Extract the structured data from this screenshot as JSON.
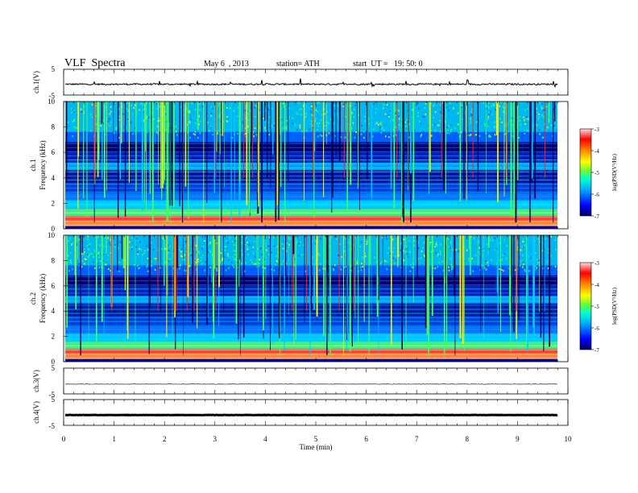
{
  "header": {
    "title": "VLF  Spectra",
    "date": "May 6  , 2013",
    "station": "station= ATH",
    "start": "start  UT =   19: 50: 0"
  },
  "chart_data": [
    {
      "type": "line",
      "panel": "ch1-waveform",
      "ylabel": "ch.1(V)",
      "ylim": [
        -5,
        5
      ],
      "yticks": [
        "5",
        "-5"
      ],
      "xlim": [
        0,
        10
      ],
      "description_level": -0.8
    },
    {
      "type": "heatmap",
      "panel": "ch1-spectrogram",
      "ylabel": "ch.1\nFrequency  (kHz)",
      "ylabel_top": "ch.1",
      "ylabel_bottom": "Frequency  (kHz)",
      "ylim": [
        0,
        10
      ],
      "yticks": [
        "0",
        "2",
        "4",
        "6",
        "8",
        "10"
      ],
      "xlim": [
        0,
        9.8
      ],
      "colorbar": {
        "label": "log(PSD(V²/Hz)",
        "range": [
          -7,
          -3
        ],
        "ticks": [
          "-3",
          "-4",
          "-5",
          "-6",
          "-7"
        ]
      }
    },
    {
      "type": "heatmap",
      "panel": "ch2-spectrogram",
      "ylabel_top": "ch.2",
      "ylabel_bottom": "Frequency  (kHz)",
      "ylim": [
        0,
        10
      ],
      "yticks": [
        "0",
        "2",
        "4",
        "6",
        "8",
        "10"
      ],
      "xlim": [
        0,
        9.8
      ],
      "colorbar": {
        "label": "log(PSD(V²/Hz)",
        "range": [
          -7,
          -3
        ],
        "ticks": [
          "-3",
          "-4",
          "-5",
          "-6",
          "-7"
        ]
      }
    },
    {
      "type": "line",
      "panel": "ch3-waveform",
      "ylabel": "ch.3(V)",
      "ylim": [
        -5,
        5
      ],
      "yticks": [
        "5",
        "-5"
      ],
      "level": -1.2
    },
    {
      "type": "line",
      "panel": "ch4-waveform",
      "ylabel": "ch.4(V)",
      "ylim": [
        -5,
        5
      ],
      "yticks": [
        "5",
        "-5"
      ],
      "level": -1.0
    }
  ],
  "xaxis": {
    "label": "Time  (min)",
    "ticks": [
      "0",
      "1",
      "2",
      "3",
      "4",
      "5",
      "6",
      "7",
      "8",
      "9",
      "10"
    ]
  },
  "colors": {
    "colormap": [
      "#000080",
      "#0000ff",
      "#00aaff",
      "#00ffcc",
      "#66ff33",
      "#ffff00",
      "#ff8800",
      "#ff0000",
      "#ffffff"
    ]
  }
}
